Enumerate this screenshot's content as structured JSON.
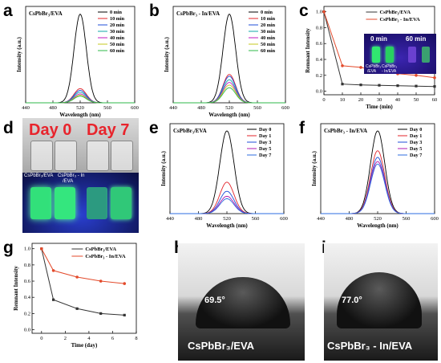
{
  "panels": {
    "a": "a",
    "b": "b",
    "c": "c",
    "d": "d",
    "e": "e",
    "f": "f",
    "g": "g",
    "h": "h",
    "i": "i"
  },
  "colors": {
    "0 min": "#000000",
    "10 min": "#e3242b",
    "20 min": "#1f4ed8",
    "30 min": "#0fa7a7",
    "40 min": "#c01ac0",
    "50 min": "#c5c91c",
    "60 min": "#2fb84a",
    "Day 0": "#000000",
    "Day 1": "#e3242b",
    "Day 3": "#1f4ed8",
    "Day 5": "#b01ab0",
    "Day 7": "#2e6ee0",
    "series_black": "#333333",
    "series_red": "#e34a2b"
  },
  "photos": {
    "d": {
      "day0": "Day 0",
      "day7": "Day 7",
      "vial_left": "CsPbBr₃/EVA",
      "vial_right": "CsPbBr₃ - In",
      "vial_right2": "/EVA"
    },
    "c_inset": {
      "t0": "0 min",
      "t60": "60 min",
      "vial1": "CsPbBr₃",
      "vial1b": "/EVA",
      "vial2": "CsPbBr₃",
      "vial2b": "- In/EVA"
    },
    "h": {
      "angle": "69.5°",
      "caption": "CsPbBr₃/EVA"
    },
    "i": {
      "angle": "77.0°",
      "caption": "CsPbBr₃ - In/EVA"
    }
  },
  "chart_data": [
    {
      "id": "a",
      "type": "line",
      "title": "CsPbBr₃/EVA",
      "xlabel": "Wavelength (nm)",
      "ylabel": "Intensity (a.u.)",
      "xlim": [
        440,
        600
      ],
      "xticks": [
        440,
        480,
        520,
        560,
        600
      ],
      "peak_center": 520,
      "series": [
        {
          "name": "0 min",
          "peak": 1.0
        },
        {
          "name": "10 min",
          "peak": 0.16
        },
        {
          "name": "20 min",
          "peak": 0.14
        },
        {
          "name": "30 min",
          "peak": 0.12
        },
        {
          "name": "40 min",
          "peak": 0.1
        },
        {
          "name": "50 min",
          "peak": 0.085
        },
        {
          "name": "60 min",
          "peak": 0.075
        }
      ]
    },
    {
      "id": "b",
      "type": "line",
      "title": "CsPbBr₃ - In/EVA",
      "xlabel": "Wavelength (nm)",
      "ylabel": "Intensity (a.u.)",
      "xlim": [
        440,
        600
      ],
      "xticks": [
        440,
        480,
        520,
        560,
        600
      ],
      "peak_center": 520,
      "series": [
        {
          "name": "0 min",
          "peak": 1.0
        },
        {
          "name": "10 min",
          "peak": 0.32
        },
        {
          "name": "20 min",
          "peak": 0.3
        },
        {
          "name": "30 min",
          "peak": 0.26
        },
        {
          "name": "40 min",
          "peak": 0.23
        },
        {
          "name": "50 min",
          "peak": 0.2
        },
        {
          "name": "60 min",
          "peak": 0.17
        }
      ]
    },
    {
      "id": "c",
      "type": "line",
      "xlabel": "Time (min)",
      "ylabel": "Remnant Intensity",
      "xlim": [
        0,
        60
      ],
      "ylim": [
        0,
        1.0
      ],
      "xticks": [
        0,
        10,
        20,
        30,
        40,
        50,
        60
      ],
      "yticks": [
        0.0,
        0.2,
        0.4,
        0.6,
        0.8,
        1.0
      ],
      "x": [
        0,
        10,
        20,
        30,
        40,
        50,
        60
      ],
      "series": [
        {
          "name": "CsPbBr₃/EVA",
          "values": [
            1.0,
            0.09,
            0.08,
            0.075,
            0.07,
            0.065,
            0.06
          ]
        },
        {
          "name": "CsPbBr₃ - In/EVA",
          "values": [
            1.0,
            0.32,
            0.3,
            0.25,
            0.22,
            0.2,
            0.17
          ]
        }
      ]
    },
    {
      "id": "e",
      "type": "line",
      "title": "CsPbBr₃/EVA",
      "xlabel": "Wavelength (nm)",
      "ylabel": "Intensity (a.u.)",
      "xlim": [
        440,
        600
      ],
      "xticks": [
        440,
        480,
        520,
        560,
        600
      ],
      "peak_center": 520,
      "series": [
        {
          "name": "Day 0",
          "peak": 1.0
        },
        {
          "name": "Day 1",
          "peak": 0.38
        },
        {
          "name": "Day 3",
          "peak": 0.27
        },
        {
          "name": "Day 5",
          "peak": 0.21
        },
        {
          "name": "Day 7",
          "peak": 0.18
        }
      ]
    },
    {
      "id": "f",
      "type": "line",
      "title": "CsPbBr₃ - In/EVA",
      "xlabel": "Wavelength (nm)",
      "ylabel": "Intensity (a.u.)",
      "xlim": [
        440,
        600
      ],
      "xticks": [
        440,
        480,
        520,
        560,
        600
      ],
      "peak_center": 520,
      "series": [
        {
          "name": "Day 0",
          "peak": 1.0
        },
        {
          "name": "Day 1",
          "peak": 0.76
        },
        {
          "name": "Day 3",
          "peak": 0.68
        },
        {
          "name": "Day 5",
          "peak": 0.63
        },
        {
          "name": "Day 7",
          "peak": 0.6
        }
      ]
    },
    {
      "id": "g",
      "type": "line",
      "xlabel": "Time (day)",
      "ylabel": "Remnant Intensity",
      "xlim": [
        -0.8,
        8
      ],
      "ylim": [
        0,
        1.0
      ],
      "xticks": [
        0,
        2,
        4,
        6,
        8
      ],
      "yticks": [
        0.0,
        0.2,
        0.4,
        0.6,
        0.8,
        1.0
      ],
      "x": [
        0,
        1,
        3,
        5,
        7
      ],
      "series": [
        {
          "name": "CsPbBr₃/EVA",
          "values": [
            1.0,
            0.37,
            0.26,
            0.2,
            0.18
          ]
        },
        {
          "name": "CsPbBr₃ - In/EVA",
          "values": [
            1.0,
            0.73,
            0.65,
            0.6,
            0.57
          ]
        }
      ]
    }
  ]
}
